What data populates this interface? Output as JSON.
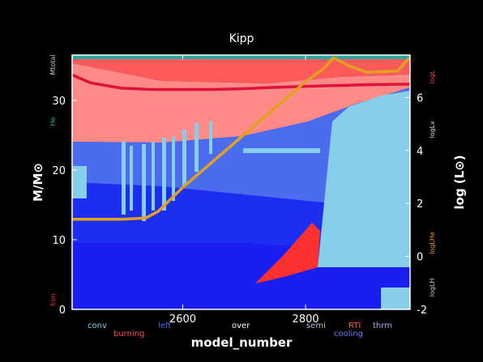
{
  "chart_data": {
    "type": "area",
    "title": "Kipp",
    "xlabel": "model_number",
    "ylabel_left": "M/M⊙",
    "ylabel_right": "log (L⊙)",
    "xlim": [
      2420,
      2970
    ],
    "ylim_left": [
      0,
      36.5
    ],
    "ylim_right": [
      -2,
      7.6
    ],
    "x_ticks": [
      2600,
      2800
    ],
    "y_ticks_left": [
      0,
      10,
      20,
      30
    ],
    "y_ticks_right": [
      -2,
      0,
      2,
      4,
      6
    ],
    "legend_left_axis": [
      {
        "label": "Mtotal",
        "color": "#cccccc"
      },
      {
        "label": "He",
        "color": "#2aa7a1"
      },
      {
        "label": "Iron",
        "color": "#ff3030"
      }
    ],
    "legend_right_axis": [
      {
        "label": "logL",
        "color": "#ff4040"
      },
      {
        "label": "logLν",
        "color": "#dddddd"
      },
      {
        "label": "logLHe",
        "color": "#e8a020"
      },
      {
        "label": "logLH",
        "color": "#cccccc"
      }
    ],
    "legend_bottom": [
      {
        "label": "conv",
        "color": "#87ceeb"
      },
      {
        "label": "burning",
        "color": "#ff5050"
      },
      {
        "label": "left",
        "color": "#4466ff"
      },
      {
        "label": "over",
        "color": "#ffffff"
      },
      {
        "label": "semi",
        "color": "#b0c4de"
      },
      {
        "label": "RTI",
        "color": "#ff6040"
      },
      {
        "label": "cooling",
        "color": "#6a7bff"
      },
      {
        "label": "thrm",
        "color": "#c0a0ff"
      }
    ],
    "series": [
      {
        "name": "logL",
        "axis": "right",
        "color": "#e0103a",
        "x": [
          2420,
          2450,
          2500,
          2550,
          2600,
          2650,
          2700,
          2750,
          2800,
          2850,
          2900,
          2950,
          2970
        ],
        "y": [
          6.85,
          6.55,
          6.35,
          6.3,
          6.3,
          6.3,
          6.33,
          6.38,
          6.42,
          6.45,
          6.48,
          6.5,
          6.5
        ]
      },
      {
        "name": "logLHe",
        "axis": "right",
        "color": "#e0a020",
        "x": [
          2420,
          2500,
          2540,
          2560,
          2600,
          2650,
          2700,
          2750,
          2800,
          2830,
          2845,
          2870,
          2900,
          2950,
          2965,
          2970
        ],
        "y": [
          1.4,
          1.4,
          1.45,
          1.7,
          2.6,
          3.6,
          4.6,
          5.6,
          6.6,
          7.1,
          7.5,
          7.2,
          6.95,
          7.0,
          7.4,
          7.5
        ]
      }
    ]
  }
}
